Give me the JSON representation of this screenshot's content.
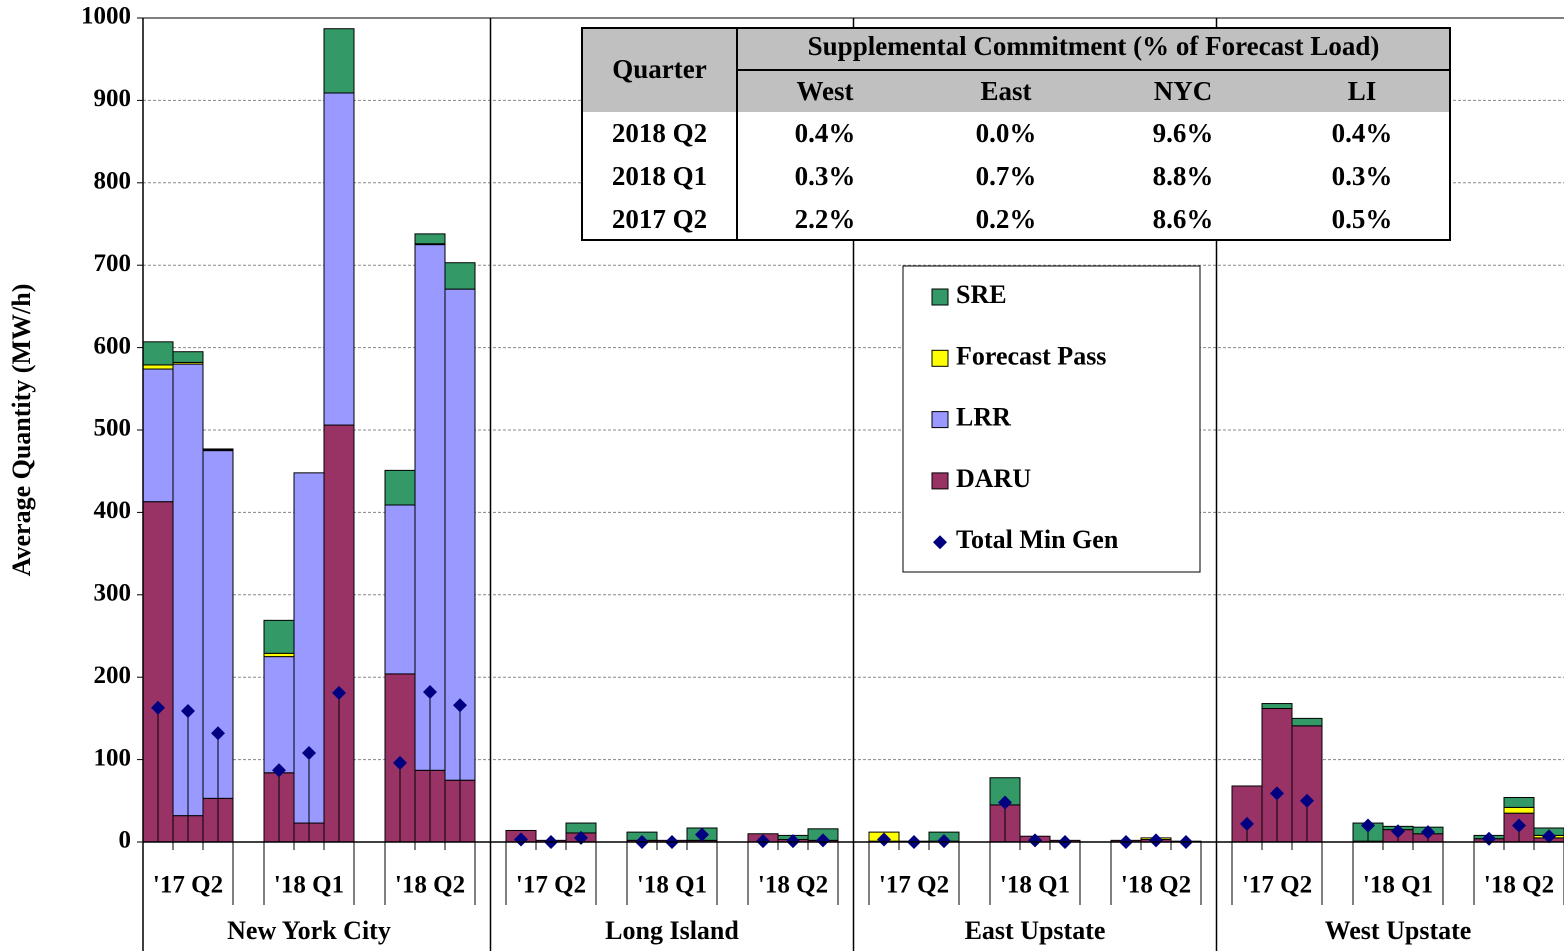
{
  "chart_data": {
    "type": "stacked_bar",
    "y_label": "Average Quantity (MW/h)",
    "ylim": [
      0,
      1000
    ],
    "yticks": [
      0,
      100,
      200,
      300,
      400,
      500,
      600,
      700,
      800,
      900,
      1000
    ],
    "grid": true,
    "regions": [
      "New York City",
      "Long Island",
      "East Upstate",
      "West Upstate"
    ],
    "quarters": [
      "'17 Q2",
      "'18 Q1",
      "'18 Q2",
      "'17 Q2",
      "'18 Q1",
      "'18 Q2",
      "'17 Q2",
      "'18 Q1",
      "'18 Q2",
      "'17 Q2",
      "'18 Q1",
      "'18 Q2"
    ],
    "series": [
      {
        "name": "DARU",
        "color": "#993366",
        "values": [
          413,
          32,
          53,
          84,
          23,
          506,
          204,
          87,
          75,
          14,
          2,
          11,
          2,
          2,
          2,
          10,
          3,
          2,
          1,
          1,
          1,
          45,
          7,
          2,
          2,
          3,
          1,
          68,
          162,
          141,
          1,
          15,
          10,
          4,
          35,
          5
        ]
      },
      {
        "name": "LRR",
        "color": "#9999ff",
        "values": [
          161,
          548,
          422,
          141,
          425,
          403,
          205,
          638,
          596,
          0,
          0,
          0,
          0,
          0,
          0,
          0,
          0,
          0,
          0,
          0,
          0,
          0,
          0,
          0,
          0,
          0,
          0,
          0,
          0,
          0,
          0,
          0,
          0,
          0,
          0,
          0
        ]
      },
      {
        "name": "Forecast Pass",
        "color": "#ffff00",
        "values": [
          5,
          2,
          1,
          4,
          0,
          0,
          0,
          1,
          0,
          0,
          0,
          0,
          0,
          0,
          0,
          0,
          0,
          0,
          11,
          0,
          0,
          0,
          0,
          0,
          0,
          2,
          0,
          0,
          0,
          0,
          0,
          0,
          0,
          0,
          7,
          3
        ]
      },
      {
        "name": "SRE",
        "color": "#339966",
        "values": [
          28,
          13,
          1,
          40,
          0,
          78,
          42,
          12,
          32,
          0,
          0,
          12,
          10,
          0,
          15,
          0,
          5,
          14,
          0,
          0,
          11,
          33,
          0,
          0,
          0,
          0,
          0,
          0,
          6,
          9,
          22,
          4,
          8,
          4,
          12,
          9
        ]
      },
      {
        "name": "Total Min Gen",
        "type": "scatter",
        "color": "#000080",
        "values": [
          163,
          159,
          132,
          87,
          108,
          181,
          96,
          182,
          166,
          3,
          0,
          5,
          0,
          0,
          9,
          1,
          1,
          2,
          3,
          0,
          1,
          48,
          2,
          0,
          0,
          2,
          0,
          22,
          59,
          50,
          20,
          13,
          12,
          4,
          20,
          7
        ]
      }
    ]
  },
  "table": {
    "quarter_header": "Quarter",
    "group_header": "Supplemental Commitment (% of Forecast Load)",
    "columns": [
      "West",
      "East",
      "NYC",
      "LI"
    ],
    "rows": [
      [
        "2018 Q2",
        "0.4%",
        "0.0%",
        "9.6%",
        "0.4%"
      ],
      [
        "2018 Q1",
        "0.3%",
        "0.7%",
        "8.8%",
        "0.3%"
      ],
      [
        "2017 Q2",
        "2.2%",
        "0.2%",
        "8.6%",
        "0.5%"
      ]
    ]
  }
}
